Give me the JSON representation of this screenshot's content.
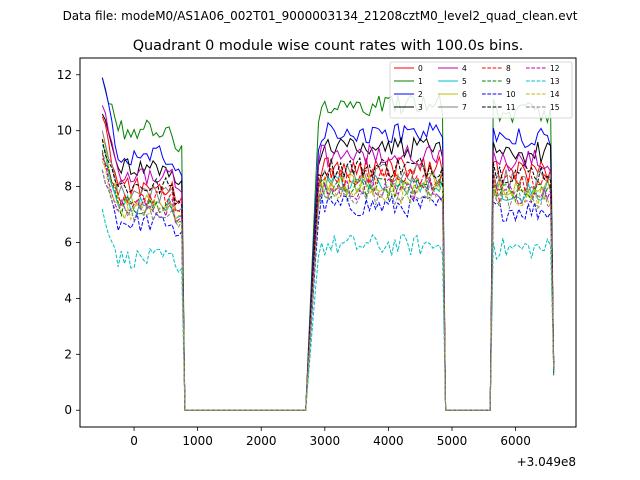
{
  "figure": {
    "suptitle": "Data file: modeM0/AS1A06_002T01_9000003134_21208cztM0_level2_quad_clean.evt"
  },
  "chart_data": {
    "type": "line",
    "title": "Quadrant 0 module wise count rates with 100.0s bins.",
    "xlabel": "",
    "ylabel": "",
    "x_offset_label": "+3.049e8",
    "xlim": [
      -850,
      6950
    ],
    "ylim": [
      -0.6,
      12.6
    ],
    "xticks": [
      0,
      1000,
      2000,
      3000,
      4000,
      5000,
      6000
    ],
    "xtick_labels": [
      "0",
      "1000",
      "2000",
      "3000",
      "4000",
      "5000",
      "6000"
    ],
    "yticks": [
      0,
      2,
      4,
      6,
      8,
      10,
      12
    ],
    "ytick_labels": [
      "0",
      "2",
      "4",
      "6",
      "8",
      "10",
      "12"
    ],
    "grid": false,
    "legend": {
      "placement": "top-right",
      "columns": 4
    },
    "segments": [
      {
        "x_start": -500,
        "x_end": 750,
        "step": 50
      },
      {
        "x_start": 2850,
        "x_end": 4850,
        "step": 50
      },
      {
        "x_start": 5650,
        "x_end": 6550,
        "step": 50
      }
    ],
    "gap_x": [
      800,
      850,
      900,
      1000,
      1500,
      2000,
      2500,
      2700,
      2800,
      4900,
      5000,
      5300,
      5600,
      6600
    ],
    "gap_y": [
      0,
      0,
      0,
      0,
      0,
      0,
      0,
      0,
      0,
      0,
      0,
      0,
      0,
      1.5
    ],
    "series": [
      {
        "name": "0",
        "color": "#ff0000",
        "dash": "solid",
        "level": 8.7,
        "start": 10.5
      },
      {
        "name": "1",
        "color": "#008000",
        "dash": "solid",
        "level": 10.9,
        "start": 11.9
      },
      {
        "name": "2",
        "color": "#0000ff",
        "dash": "solid",
        "level": 9.9,
        "start": 11.9
      },
      {
        "name": "3",
        "color": "#000000",
        "dash": "solid",
        "level": 9.4,
        "start": 10.6
      },
      {
        "name": "4",
        "color": "#bf00bf",
        "dash": "solid",
        "level": 9.1,
        "start": 10.9
      },
      {
        "name": "5",
        "color": "#00bfbf",
        "dash": "solid",
        "level": 8.0,
        "start": 9.5
      },
      {
        "name": "6",
        "color": "#bfbf00",
        "dash": "solid",
        "level": 8.1,
        "start": 9.7
      },
      {
        "name": "7",
        "color": "#808080",
        "dash": "solid",
        "level": 8.4,
        "start": 10.0
      },
      {
        "name": "8",
        "color": "#ff0000",
        "dash": "dashed",
        "level": 8.3,
        "start": 9.2
      },
      {
        "name": "9",
        "color": "#008000",
        "dash": "dashed",
        "level": 7.9,
        "start": 9.3
      },
      {
        "name": "10",
        "color": "#0000ff",
        "dash": "dashed",
        "level": 7.3,
        "start": 8.6
      },
      {
        "name": "11",
        "color": "#000000",
        "dash": "dashed",
        "level": 8.7,
        "start": 9.7
      },
      {
        "name": "12",
        "color": "#bf00bf",
        "dash": "dashed",
        "level": 7.9,
        "start": 9.0
      },
      {
        "name": "13",
        "color": "#00bfbf",
        "dash": "dashed",
        "level": 5.9,
        "start": 7.2
      },
      {
        "name": "14",
        "color": "#bfbf00",
        "dash": "dashed",
        "level": 7.8,
        "start": 8.9
      },
      {
        "name": "15",
        "color": "#808080",
        "dash": "dashed",
        "level": 7.7,
        "start": 8.6
      }
    ]
  }
}
